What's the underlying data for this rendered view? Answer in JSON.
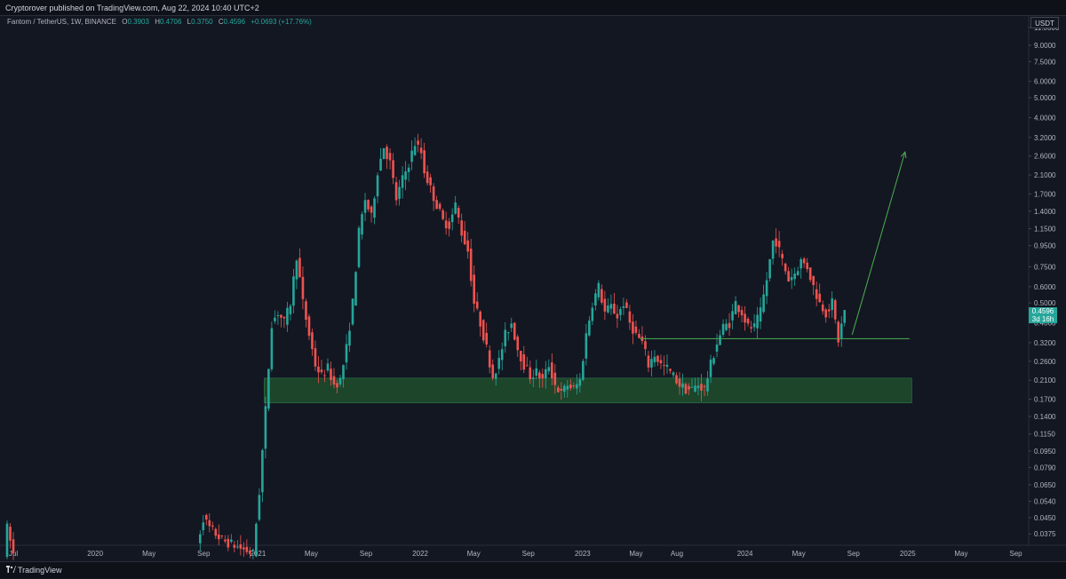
{
  "header": {
    "publisher_text": "Cryptorover published on TradingView.com, Aug 22, 2024 10:40 UTC+2"
  },
  "legend": {
    "symbol": "Fantom / TetherUS, 1W, BINANCE",
    "open_label": "O",
    "open": "0.3903",
    "high_label": "H",
    "high": "0.4706",
    "low_label": "L",
    "low": "0.3750",
    "close_label": "C",
    "close": "0.4596",
    "change": "+0.0693 (+17.76%)"
  },
  "price_axis": {
    "currency": "USDT",
    "last_price": "0.4596",
    "countdown": "3d 16h"
  },
  "footer": {
    "brand": "TradingView"
  },
  "colors": {
    "background": "#131722",
    "up": "#26a69a",
    "down": "#ef5350",
    "zone": "#1e4d2b",
    "line": "#4caf50"
  },
  "chart_data": {
    "type": "candlestick",
    "scale": "log",
    "ylim": [
      0.033,
      12.5
    ],
    "y_ticks": [
      {
        "v": 11.0,
        "label": "11.0000"
      },
      {
        "v": 9.0,
        "label": "9.0000"
      },
      {
        "v": 7.5,
        "label": "7.5000"
      },
      {
        "v": 6.0,
        "label": "6.0000"
      },
      {
        "v": 5.0,
        "label": "5.0000"
      },
      {
        "v": 4.0,
        "label": "4.0000"
      },
      {
        "v": 3.2,
        "label": "3.2000"
      },
      {
        "v": 2.6,
        "label": "2.6000"
      },
      {
        "v": 2.1,
        "label": "2.1000"
      },
      {
        "v": 1.7,
        "label": "1.7000"
      },
      {
        "v": 1.4,
        "label": "1.4000"
      },
      {
        "v": 1.15,
        "label": "1.1500"
      },
      {
        "v": 0.95,
        "label": "0.9500"
      },
      {
        "v": 0.75,
        "label": "0.7500"
      },
      {
        "v": 0.6,
        "label": "0.6000"
      },
      {
        "v": 0.5,
        "label": "0.5000"
      },
      {
        "v": 0.4,
        "label": "0.4000"
      },
      {
        "v": 0.32,
        "label": "0.3200"
      },
      {
        "v": 0.26,
        "label": "0.2600"
      },
      {
        "v": 0.21,
        "label": "0.2100"
      },
      {
        "v": 0.17,
        "label": "0.1700"
      },
      {
        "v": 0.14,
        "label": "0.1400"
      },
      {
        "v": 0.115,
        "label": "0.1150"
      },
      {
        "v": 0.095,
        "label": "0.0950"
      },
      {
        "v": 0.079,
        "label": "0.0790"
      },
      {
        "v": 0.065,
        "label": "0.0650"
      },
      {
        "v": 0.054,
        "label": "0.0540"
      },
      {
        "v": 0.045,
        "label": "0.0450"
      },
      {
        "v": 0.0375,
        "label": "0.0375"
      }
    ],
    "x_range": [
      "2019-06-01",
      "2025-09-30"
    ],
    "x_ticks": [
      {
        "date": "2019-07-01",
        "label": "Jul"
      },
      {
        "date": "2020-01-01",
        "label": "2020"
      },
      {
        "date": "2020-05-01",
        "label": "May"
      },
      {
        "date": "2020-09-01",
        "label": "Sep"
      },
      {
        "date": "2021-01-01",
        "label": "2021"
      },
      {
        "date": "2021-05-01",
        "label": "May"
      },
      {
        "date": "2021-09-01",
        "label": "Sep"
      },
      {
        "date": "2022-01-01",
        "label": "2022"
      },
      {
        "date": "2022-05-01",
        "label": "May"
      },
      {
        "date": "2022-09-01",
        "label": "Sep"
      },
      {
        "date": "2023-01-01",
        "label": "2023"
      },
      {
        "date": "2023-05-01",
        "label": "May"
      },
      {
        "date": "2023-08-01",
        "label": "Aug"
      },
      {
        "date": "2024-01-01",
        "label": "2024"
      },
      {
        "date": "2024-05-01",
        "label": "May"
      },
      {
        "date": "2024-09-01",
        "label": "Sep"
      },
      {
        "date": "2025-01-01",
        "label": "2025"
      },
      {
        "date": "2025-05-01",
        "label": "May"
      },
      {
        "date": "2025-09-01",
        "label": "Sep"
      }
    ],
    "price_path": [
      [
        "2019-06-17",
        0.03
      ],
      [
        "2019-06-24",
        0.04
      ],
      [
        "2019-07-08",
        0.03
      ],
      [
        "2020-08-24",
        0.033
      ],
      [
        "2020-09-07",
        0.045
      ],
      [
        "2020-09-21",
        0.04
      ],
      [
        "2020-10-19",
        0.035
      ],
      [
        "2020-12-28",
        0.03
      ],
      [
        "2021-01-11",
        0.06
      ],
      [
        "2021-01-25",
        0.15
      ],
      [
        "2021-02-08",
        0.4
      ],
      [
        "2021-02-22",
        0.45
      ],
      [
        "2021-03-08",
        0.4
      ],
      [
        "2021-03-22",
        0.5
      ],
      [
        "2021-04-05",
        0.85
      ],
      [
        "2021-04-19",
        0.5
      ],
      [
        "2021-05-03",
        0.35
      ],
      [
        "2021-05-17",
        0.25
      ],
      [
        "2021-05-31",
        0.22
      ],
      [
        "2021-06-14",
        0.24
      ],
      [
        "2021-06-28",
        0.2
      ],
      [
        "2021-07-12",
        0.21
      ],
      [
        "2021-07-26",
        0.3
      ],
      [
        "2021-08-09",
        0.5
      ],
      [
        "2021-08-23",
        1.1
      ],
      [
        "2021-09-06",
        1.6
      ],
      [
        "2021-09-20",
        1.3
      ],
      [
        "2021-10-04",
        2.2
      ],
      [
        "2021-10-18",
        2.9
      ],
      [
        "2021-11-01",
        2.4
      ],
      [
        "2021-11-15",
        1.6
      ],
      [
        "2021-11-29",
        2.0
      ],
      [
        "2021-12-13",
        2.4
      ],
      [
        "2021-12-27",
        3.0
      ],
      [
        "2022-01-10",
        2.7
      ],
      [
        "2022-01-17",
        2.2
      ],
      [
        "2022-01-31",
        1.8
      ],
      [
        "2022-02-14",
        1.5
      ],
      [
        "2022-02-28",
        1.25
      ],
      [
        "2022-03-14",
        1.2
      ],
      [
        "2022-03-28",
        1.5
      ],
      [
        "2022-04-11",
        1.1
      ],
      [
        "2022-04-25",
        0.9
      ],
      [
        "2022-05-09",
        0.5
      ],
      [
        "2022-05-23",
        0.4
      ],
      [
        "2022-06-06",
        0.3
      ],
      [
        "2022-06-20",
        0.22
      ],
      [
        "2022-07-04",
        0.26
      ],
      [
        "2022-07-18",
        0.35
      ],
      [
        "2022-08-01",
        0.4
      ],
      [
        "2022-08-15",
        0.3
      ],
      [
        "2022-08-29",
        0.25
      ],
      [
        "2022-09-12",
        0.22
      ],
      [
        "2022-09-26",
        0.23
      ],
      [
        "2022-10-10",
        0.21
      ],
      [
        "2022-10-24",
        0.25
      ],
      [
        "2022-11-07",
        0.2
      ],
      [
        "2022-11-21",
        0.18
      ],
      [
        "2022-12-05",
        0.2
      ],
      [
        "2022-12-19",
        0.19
      ],
      [
        "2023-01-02",
        0.21
      ],
      [
        "2023-01-16",
        0.35
      ],
      [
        "2023-01-30",
        0.5
      ],
      [
        "2023-02-13",
        0.6
      ],
      [
        "2023-02-27",
        0.45
      ],
      [
        "2023-03-13",
        0.48
      ],
      [
        "2023-03-27",
        0.43
      ],
      [
        "2023-04-10",
        0.5
      ],
      [
        "2023-04-24",
        0.4
      ],
      [
        "2023-05-08",
        0.35
      ],
      [
        "2023-05-22",
        0.32
      ],
      [
        "2023-06-05",
        0.25
      ],
      [
        "2023-06-19",
        0.28
      ],
      [
        "2023-07-03",
        0.25
      ],
      [
        "2023-07-17",
        0.24
      ],
      [
        "2023-07-31",
        0.22
      ],
      [
        "2023-08-14",
        0.2
      ],
      [
        "2023-08-28",
        0.19
      ],
      [
        "2023-09-11",
        0.19
      ],
      [
        "2023-09-25",
        0.2
      ],
      [
        "2023-10-09",
        0.19
      ],
      [
        "2023-10-23",
        0.25
      ],
      [
        "2023-11-06",
        0.32
      ],
      [
        "2023-11-20",
        0.38
      ],
      [
        "2023-12-04",
        0.4
      ],
      [
        "2023-12-18",
        0.5
      ],
      [
        "2024-01-01",
        0.45
      ],
      [
        "2024-01-15",
        0.38
      ],
      [
        "2024-01-29",
        0.38
      ],
      [
        "2024-02-12",
        0.45
      ],
      [
        "2024-02-26",
        0.65
      ],
      [
        "2024-03-11",
        1.0
      ],
      [
        "2024-03-18",
        1.0
      ],
      [
        "2024-04-01",
        0.8
      ],
      [
        "2024-04-15",
        0.65
      ],
      [
        "2024-04-29",
        0.7
      ],
      [
        "2024-05-13",
        0.8
      ],
      [
        "2024-05-27",
        0.75
      ],
      [
        "2024-06-10",
        0.6
      ],
      [
        "2024-06-24",
        0.5
      ],
      [
        "2024-07-08",
        0.45
      ],
      [
        "2024-07-22",
        0.5
      ],
      [
        "2024-08-05",
        0.33
      ],
      [
        "2024-08-12",
        0.39
      ],
      [
        "2024-08-19",
        0.46
      ]
    ],
    "annotations": [
      {
        "type": "zone",
        "x0": "2021-01-15",
        "x1": "2025-01-10",
        "y0": 0.163,
        "y1": 0.215
      },
      {
        "type": "hline",
        "x0": "2023-05-10",
        "x1": "2025-01-05",
        "y": 0.335
      },
      {
        "type": "arrow",
        "x0": "2024-08-29",
        "y0": 0.35,
        "x1": "2024-12-26",
        "y1": 2.72
      }
    ]
  }
}
